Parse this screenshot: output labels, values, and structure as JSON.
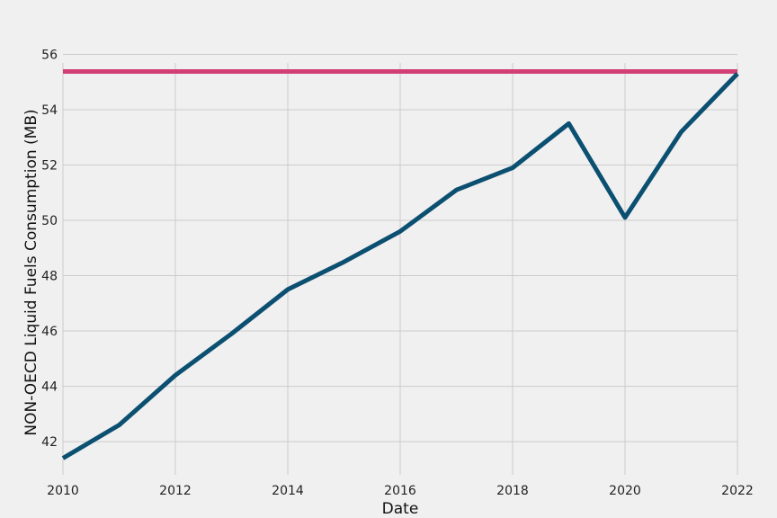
{
  "chart_data": {
    "type": "line",
    "title": "",
    "xlabel": "Date",
    "ylabel": "NON-OECD Liquid Fuels Consumption (MB)",
    "xlim": [
      2010,
      2022
    ],
    "ylim": [
      40.8,
      56.6
    ],
    "xticks": [
      "2010",
      "2012",
      "2014",
      "2016",
      "2018",
      "2020",
      "2022"
    ],
    "yticks": [
      "42",
      "44",
      "46",
      "48",
      "50",
      "52",
      "54",
      "56"
    ],
    "grid": true,
    "x": [
      2010,
      2011,
      2012,
      2013,
      2014,
      2015,
      2016,
      2017,
      2018,
      2019,
      2020,
      2021,
      2022
    ],
    "series": [
      {
        "values": [
          41.4,
          42.6,
          44.4,
          45.9,
          47.5,
          48.5,
          49.6,
          51.1,
          51.9,
          53.5,
          50.1,
          53.2,
          55.3
        ],
        "color": "#0b4f71"
      }
    ],
    "reference_line": {
      "value": 55.38,
      "color": "#d23f74"
    }
  }
}
